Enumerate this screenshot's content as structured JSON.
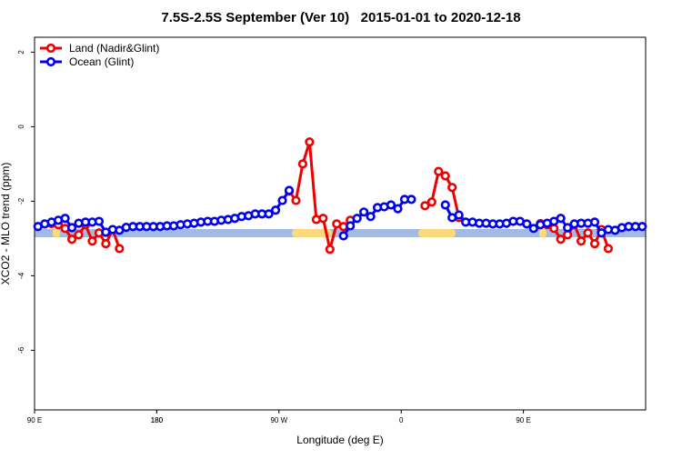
{
  "chart_data": {
    "type": "line",
    "title": "7.5S-2.5S September (Ver 10)   2015-01-01 to 2020-12-18",
    "x_label": "Longitude (deg E)",
    "y_label": "XCO2 - MLO trend (ppm)",
    "xlim": [
      90,
      540
    ],
    "xticks": [
      {
        "value": 90,
        "label": "90 E"
      },
      180,
      {
        "value": 270,
        "label": "90 W"
      },
      {
        "value": 360,
        "label": "0"
      },
      {
        "value": 450,
        "label": "90 E"
      },
      180.0001
    ],
    "ylim": [
      -7.6,
      2.4
    ],
    "yticks": [
      -6,
      -4,
      -2,
      0,
      2
    ],
    "legend": "top-left",
    "series": [
      {
        "name": "Land (Nadir&Glint)",
        "color": "#ee0000",
        "x": [
          102.5,
          107.5,
          112.5,
          117.5,
          122.5,
          127.5,
          132.5,
          137.5,
          142.5,
          147.5,
          152.5,
          200,
          277.5,
          282.5,
          287.5,
          292.5,
          297.5,
          302.5,
          307.5,
          312.5,
          317.5,
          322.5,
          350,
          377.5,
          382.5,
          387.5,
          392.5,
          397.5,
          402.5,
          430,
          462.5,
          467.5,
          472.5,
          477.5,
          482.5,
          487.5,
          492.5,
          497.5,
          502.5,
          507.5,
          512.5
        ],
        "values": [
          -2.6,
          -2.63,
          -2.73,
          -3.02,
          -2.9,
          -2.63,
          -3.07,
          -2.85,
          -3.14,
          -2.76,
          -3.27,
          null,
          -1.73,
          -1.98,
          -1.0,
          -0.41,
          -2.49,
          -2.46,
          -3.29,
          -2.61,
          -2.68,
          -2.51,
          null,
          -2.12,
          -2.02,
          -1.2,
          -1.32,
          -1.63,
          -2.44,
          null,
          -2.6,
          -2.63,
          -2.73,
          -3.02,
          -2.9,
          -2.63,
          -3.07,
          -2.85,
          -3.14,
          -2.76,
          -3.27
        ]
      },
      {
        "name": "Ocean (Glint)",
        "color": "#0000ee",
        "x": [
          92.5,
          97.5,
          102.5,
          107.5,
          112.5,
          117.5,
          122.5,
          127.5,
          132.5,
          137.5,
          142.5,
          147.5,
          152.5,
          157.5,
          162.5,
          167.5,
          172.5,
          177.5,
          182.5,
          187.5,
          192.5,
          197.5,
          202.5,
          207.5,
          212.5,
          217.5,
          222.5,
          227.5,
          232.5,
          237.5,
          242.5,
          247.5,
          252.5,
          257.5,
          262.5,
          267.5,
          272.5,
          277.5,
          297.5,
          317.5,
          322.5,
          327.5,
          332.5,
          337.5,
          342.5,
          347.5,
          352.5,
          357.5,
          362.5,
          367.5,
          380,
          392.5,
          397.5,
          402.5,
          407.5,
          412.5,
          417.5,
          422.5,
          427.5,
          432.5,
          437.5,
          442.5,
          447.5,
          452.5,
          457.5,
          462.5,
          467.5,
          472.5,
          477.5,
          482.5,
          487.5,
          492.5,
          497.5,
          502.5,
          507.5,
          512.5,
          517.5,
          522.5,
          527.5,
          532.5,
          537.5
        ],
        "values": [
          -2.68,
          -2.61,
          -2.56,
          -2.51,
          -2.46,
          -2.71,
          -2.59,
          -2.56,
          -2.56,
          -2.54,
          -2.83,
          -2.76,
          -2.78,
          -2.7,
          -2.68,
          -2.68,
          -2.68,
          -2.68,
          -2.68,
          -2.66,
          -2.66,
          -2.63,
          -2.61,
          -2.59,
          -2.56,
          -2.54,
          -2.54,
          -2.51,
          -2.49,
          -2.46,
          -2.41,
          -2.39,
          -2.34,
          -2.34,
          -2.34,
          -2.24,
          -1.98,
          -1.71,
          null,
          -2.93,
          -2.66,
          -2.46,
          -2.29,
          -2.41,
          -2.17,
          -2.15,
          -2.1,
          -2.2,
          -1.95,
          -1.95,
          null,
          -2.1,
          -2.44,
          -2.37,
          -2.56,
          -2.56,
          -2.59,
          -2.59,
          -2.61,
          -2.61,
          -2.59,
          -2.54,
          -2.54,
          -2.61,
          -2.73,
          -2.63,
          -2.59,
          -2.54,
          -2.46,
          -2.71,
          -2.61,
          -2.59,
          -2.59,
          -2.56,
          -2.85,
          -2.76,
          -2.78,
          -2.71,
          -2.68,
          -2.68,
          -2.68
        ]
      }
    ]
  }
}
